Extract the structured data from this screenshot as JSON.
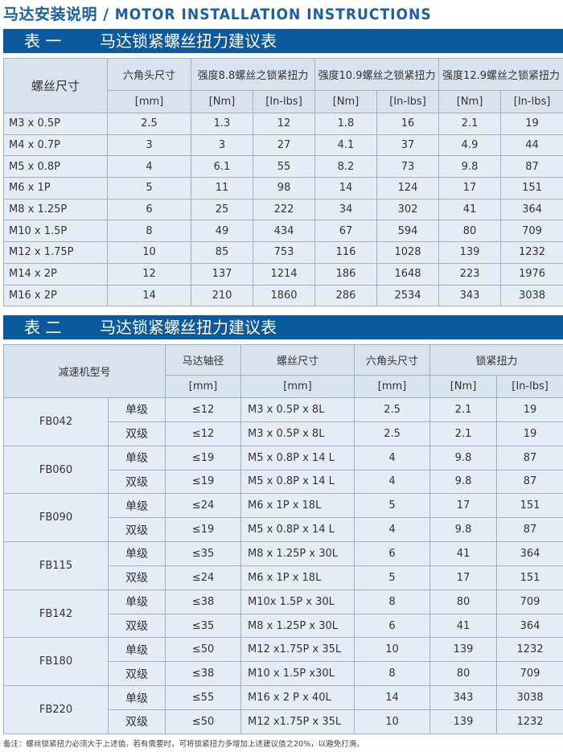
{
  "title": {
    "cn": "马达安装说明 /",
    "en": "MOTOR INSTALLATION INSTRUCTIONS"
  },
  "table1": {
    "num": "表 一",
    "name": "马达锁紧螺丝扭力建议表",
    "headers": [
      "螺丝尺寸",
      "六角头尺寸",
      "强度8.8螺丝之锁紧扭力",
      "强度10.9螺丝之锁紧扭力",
      "强度12.9螺丝之锁紧扭力"
    ],
    "units": [
      "[mm]",
      "[Nm]",
      "[In-lbs]",
      "[Nm]",
      "[In-lbs]",
      "[Nm]",
      "[In-lbs]"
    ],
    "rows": [
      [
        "M3 x 0.5P",
        "2.5",
        "1.3",
        "12",
        "1.8",
        "16",
        "2.1",
        "19"
      ],
      [
        "M4 x 0.7P",
        "3",
        "3",
        "27",
        "4.1",
        "37",
        "4.9",
        "44"
      ],
      [
        "M5 x 0.8P",
        "4",
        "6.1",
        "55",
        "8.2",
        "73",
        "9.8",
        "87"
      ],
      [
        "M6 x 1P",
        "5",
        "11",
        "98",
        "14",
        "124",
        "17",
        "151"
      ],
      [
        "M8 x 1.25P",
        "6",
        "25",
        "222",
        "34",
        "302",
        "41",
        "364"
      ],
      [
        "M10 x 1.5P",
        "8",
        "49",
        "434",
        "67",
        "594",
        "80",
        "709"
      ],
      [
        "M12 x 1.75P",
        "10",
        "85",
        "753",
        "116",
        "1028",
        "139",
        "1232"
      ],
      [
        "M14 x 2P",
        "12",
        "137",
        "1214",
        "186",
        "1648",
        "223",
        "1976"
      ],
      [
        "M16 x 2P",
        "14",
        "210",
        "1860",
        "286",
        "2534",
        "343",
        "3038"
      ]
    ]
  },
  "table2": {
    "num": "表 二",
    "name": "马达锁紧螺丝扭力建议表",
    "headers": [
      "减速机型号",
      "马达轴径",
      "螺丝尺寸",
      "六角头尺寸",
      "锁紧扭力"
    ],
    "units": [
      "[mm]",
      "[mm]",
      "[mm]",
      "[Nm]",
      "[In-lbs]"
    ],
    "groups": [
      {
        "model": "FB042",
        "rows": [
          [
            "单级",
            "≤12",
            "M3 x 0.5P x 8L",
            "2.5",
            "2.1",
            "19"
          ],
          [
            "双级",
            "≤12",
            "M3 x 0.5P x 8L",
            "2.5",
            "2.1",
            "19"
          ]
        ]
      },
      {
        "model": "FB060",
        "rows": [
          [
            "单级",
            "≤19",
            "M5 x 0.8P x 14 L",
            "4",
            "9.8",
            "87"
          ],
          [
            "双级",
            "≤19",
            "M5 x 0.8P x 14 L",
            "4",
            "9.8",
            "87"
          ]
        ]
      },
      {
        "model": "FB090",
        "rows": [
          [
            "单级",
            "≤24",
            "M6 x 1P x 18L",
            "5",
            "17",
            "151"
          ],
          [
            "双级",
            "≤19",
            "M5 x 0.8P x 14 L",
            "4",
            "9.8",
            "87"
          ]
        ]
      },
      {
        "model": "FB115",
        "rows": [
          [
            "单级",
            "≤35",
            "M8 x 1.25P x 30L",
            "6",
            "41",
            "364"
          ],
          [
            "双级",
            "≤24",
            "M6 x 1P x 18L",
            "5",
            "17",
            "151"
          ]
        ]
      },
      {
        "model": "FB142",
        "rows": [
          [
            "单级",
            "≤38",
            "M10x 1.5P x 30L",
            "8",
            "80",
            "709"
          ],
          [
            "双级",
            "≤35",
            "M8 x 1.25P x 30L",
            "6",
            "41",
            "364"
          ]
        ]
      },
      {
        "model": "FB180",
        "rows": [
          [
            "单级",
            "≤50",
            "M12 x1.75P x 35L",
            "10",
            "139",
            "1232"
          ],
          [
            "双级",
            "≤38",
            "M10 x 1.5P x30L",
            "8",
            "80",
            "709"
          ]
        ]
      },
      {
        "model": "FB220",
        "rows": [
          [
            "单级",
            "≤55",
            "M16 x 2 P x 40L",
            "14",
            "343",
            "3038"
          ],
          [
            "双级",
            "≤50",
            "M12 x1.75P x 35L",
            "10",
            "139",
            "1232"
          ]
        ]
      }
    ]
  },
  "note": "备注：螺丝锁紧扭力必须大于上述值。若有需要时，可将锁紧扭力多增加上述建议值之20%，以避免打滑。",
  "colors": {
    "title": "#1a5fa8",
    "bar": "#0b5aa0",
    "header_cell": "#d8e3ee",
    "body_cell": "#e4ecf5"
  }
}
